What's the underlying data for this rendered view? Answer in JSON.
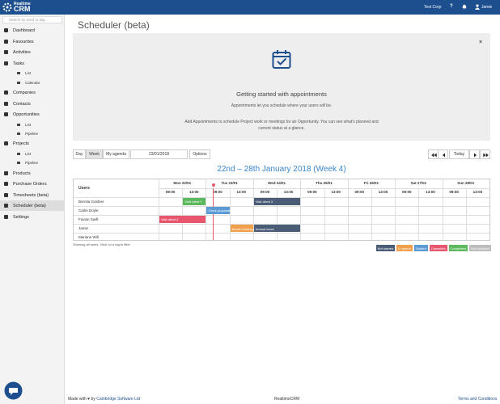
{
  "header": {
    "brand_top": "Realtime",
    "brand_main": "CRM",
    "company": "Test Corp",
    "help": "?",
    "user": "Jamie"
  },
  "sidebar": {
    "search_placeholder": "Search by word or tag...",
    "items": [
      {
        "label": "Dashboard"
      },
      {
        "label": "Favourites"
      },
      {
        "label": "Activities"
      },
      {
        "label": "Tasks",
        "children": [
          "List",
          "Calendar"
        ]
      },
      {
        "label": "Companies"
      },
      {
        "label": "Contacts"
      },
      {
        "label": "Opportunities",
        "children": [
          "List",
          "Pipeline"
        ]
      },
      {
        "label": "Projects",
        "children": [
          "List",
          "Pipeline"
        ]
      },
      {
        "label": "Products"
      },
      {
        "label": "Purchase Orders"
      },
      {
        "label": "Timesheets (beta)"
      },
      {
        "label": "Scheduler (beta)",
        "active": true
      },
      {
        "label": "Settings"
      }
    ]
  },
  "page": {
    "title": "Scheduler (beta)"
  },
  "intro": {
    "heading": "Getting started with appointments",
    "text": "Appointments let you schedule where your users will be.",
    "detail": "Add Appointments to schedule Project work or meetings for an Opportunity. You can see what's planned and current status at a glance."
  },
  "toolbar": {
    "views": [
      "Day",
      "Week",
      "My agenda"
    ],
    "active_view": 1,
    "date": "23/01/2018",
    "options": "Options",
    "today": "Today"
  },
  "calendar": {
    "title": "22nd – 28th January 2018 (Week 4)",
    "users_header": "Users",
    "days": [
      "Mon 22/01",
      "Tue 23/01",
      "Wed 24/01",
      "Thu 25/01",
      "Fri 26/01",
      "Sat 27/01",
      "Sun 28/01"
    ],
    "times": [
      "09:00",
      "13:00"
    ],
    "users": [
      "Bernita Goldner",
      "Carlie Doyle",
      "Favian Swift",
      "Jamie",
      "Mariane Will"
    ],
    "events": [
      {
        "label": "Visit client Y",
        "user": "Bernita Goldner",
        "color": "#5cb85c"
      },
      {
        "label": "Visit client X",
        "user": "Bernita Goldner",
        "color": "#4b5c77"
      },
      {
        "label": "Client proposal",
        "user": "Carlie Doyle",
        "color": "#5b9bd5"
      },
      {
        "label": "Visit client Z",
        "user": "Favian Swift",
        "color": "#e8566e"
      },
      {
        "label": "Board meeting",
        "user": "Jamie",
        "color": "#f0a04b"
      },
      {
        "label": "Annual leave",
        "user": "Jamie",
        "color": "#4b5c77"
      }
    ],
    "note": "Showing all users. Click on a tag to filter",
    "legend": [
      {
        "label": "Not started",
        "color": "#4b5c77"
      },
      {
        "label": "In queue",
        "color": "#f0a04b"
      },
      {
        "label": "Started",
        "color": "#5b9bd5"
      },
      {
        "label": "Cancelled",
        "color": "#e8566e"
      },
      {
        "label": "Completed",
        "color": "#5cb85c"
      },
      {
        "label": "Not available",
        "color": "#bdbdbd"
      }
    ]
  },
  "footer": {
    "made": "Made with ♥ by",
    "company": "Cambridge Software Ltd",
    "product": "RealtimeCRM",
    "terms": "Terms and Conditions"
  }
}
